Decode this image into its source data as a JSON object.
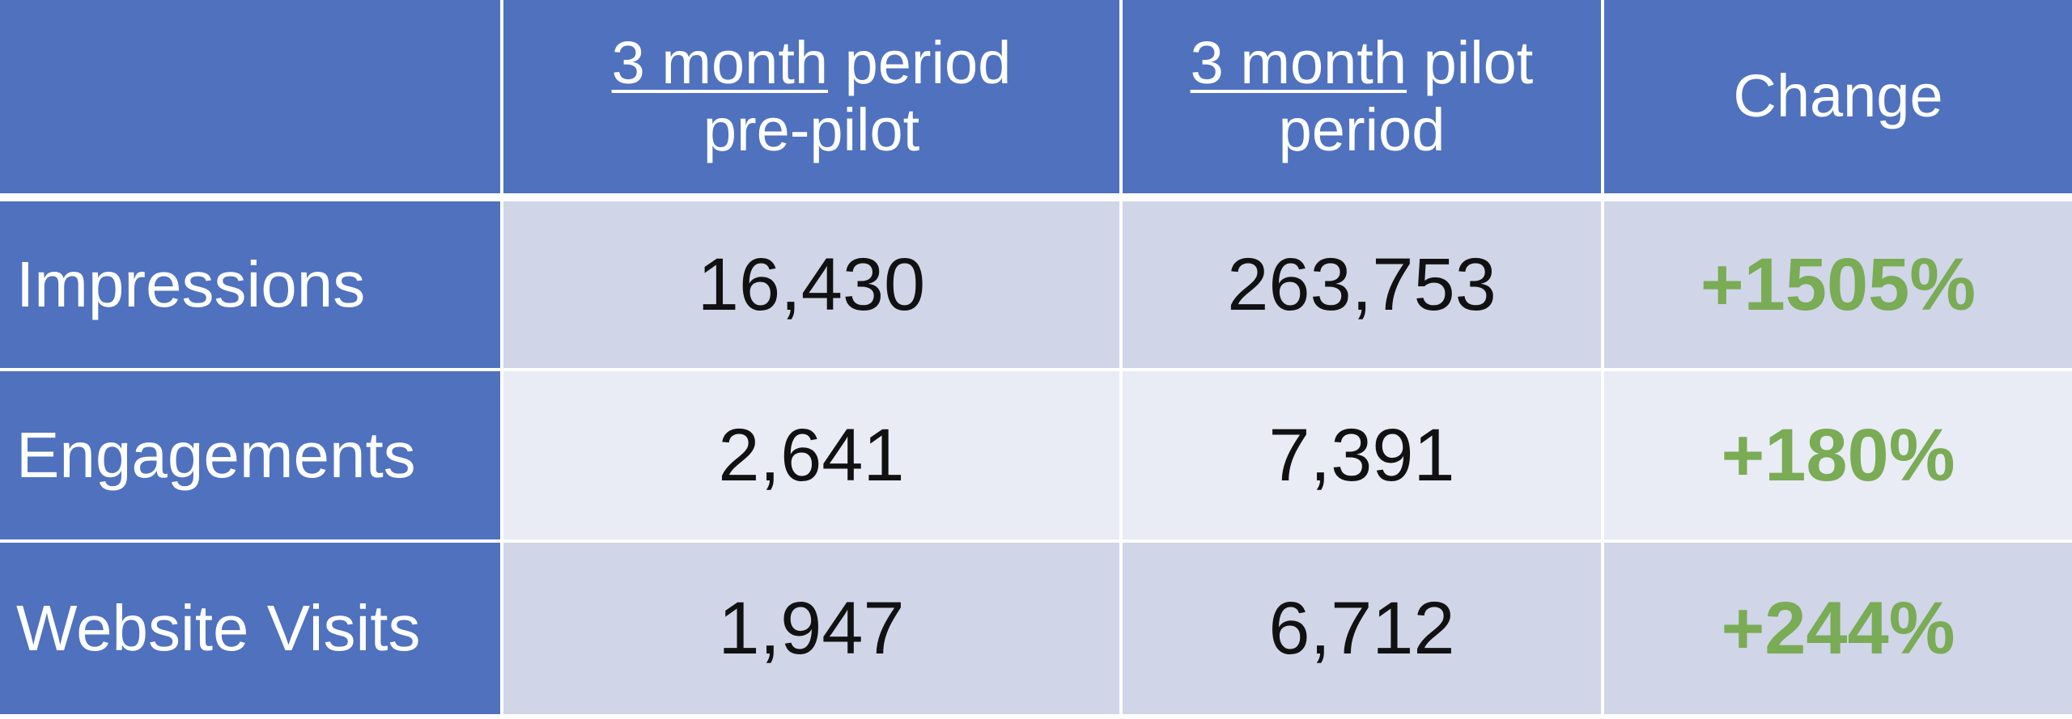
{
  "table": {
    "header": [
      null,
      {
        "underlined": "3 month",
        "text": "period pre-pilot"
      },
      {
        "underlined": "3 month",
        "text": "pilot period"
      },
      {
        "underlined": null,
        "text": "Change"
      }
    ],
    "rows": [
      [
        "Impressions",
        "16,430",
        "263,753",
        "+1505%"
      ],
      [
        "Engagements",
        "2,641",
        "7,391",
        "+180%"
      ],
      [
        "Website Visits",
        "1,947",
        "6,712",
        "+244%"
      ]
    ]
  }
}
